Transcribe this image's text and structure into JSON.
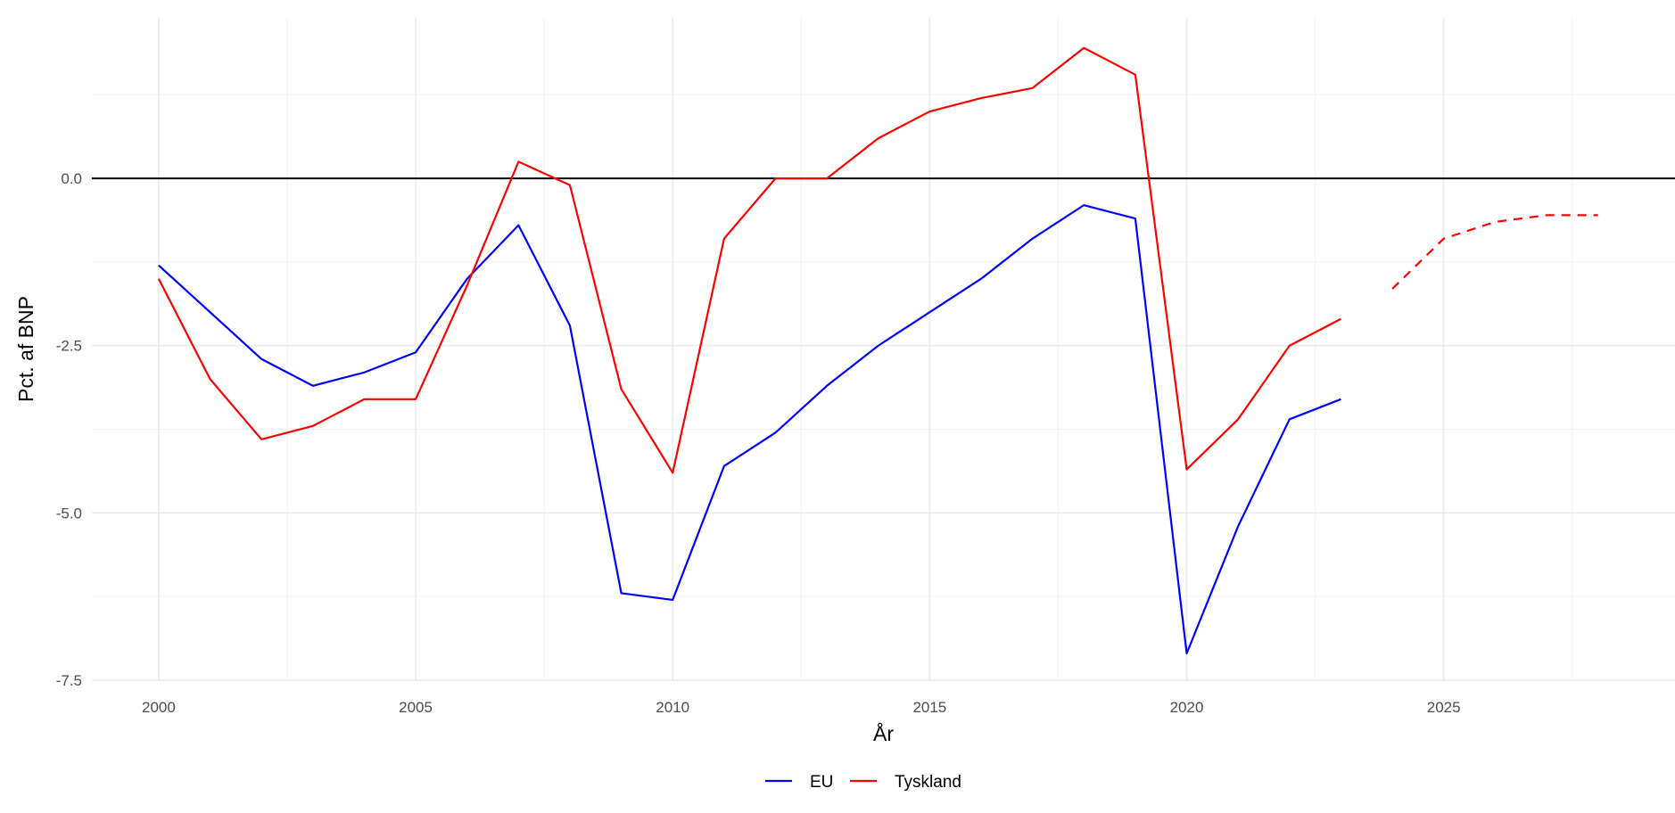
{
  "chart_data": {
    "type": "line",
    "title": "",
    "xlabel": "År",
    "ylabel": "Pct. af BNP",
    "xlim": [
      1998.7,
      2029.5
    ],
    "ylim": [
      -7.5,
      2.4
    ],
    "x_ticks": [
      2000,
      2005,
      2010,
      2015,
      2020,
      2025
    ],
    "x_tick_labels": [
      "2000",
      "2005",
      "2010",
      "2015",
      "2020",
      "2025"
    ],
    "y_ticks": [
      -7.5,
      -5.0,
      -2.5,
      0.0
    ],
    "y_tick_labels": [
      "-7.5",
      "-5.0",
      "-2.5",
      "0.0"
    ],
    "grid": true,
    "reference_line": {
      "y": 0,
      "color": "#000000"
    },
    "legend_position": "bottom",
    "series": [
      {
        "name": "EU",
        "color": "#0000ff",
        "line_style": "solid",
        "x": [
          2000,
          2001,
          2002,
          2003,
          2004,
          2005,
          2006,
          2007,
          2008,
          2009,
          2010,
          2011,
          2012,
          2013,
          2014,
          2015,
          2016,
          2017,
          2018,
          2019,
          2020,
          2021,
          2022,
          2023
        ],
        "values": [
          -1.3,
          -2.0,
          -2.7,
          -3.1,
          -2.9,
          -2.6,
          -1.5,
          -0.7,
          -2.2,
          -6.2,
          -6.3,
          -4.3,
          -3.8,
          -3.1,
          -2.5,
          -2.0,
          -1.5,
          -0.9,
          -0.4,
          -0.6,
          -7.1,
          -5.2,
          -3.6,
          -3.3
        ]
      },
      {
        "name": "Tyskland",
        "color": "#ff0000",
        "line_style": "solid",
        "x": [
          2000,
          2001,
          2002,
          2003,
          2004,
          2005,
          2006,
          2007,
          2008,
          2009,
          2010,
          2011,
          2012,
          2013,
          2014,
          2015,
          2016,
          2017,
          2018,
          2019,
          2020,
          2021,
          2022,
          2023
        ],
        "values": [
          -1.5,
          -3.0,
          -3.9,
          -3.7,
          -3.3,
          -3.3,
          -1.6,
          0.25,
          -0.1,
          -3.15,
          -4.4,
          -0.9,
          0.0,
          0.0,
          0.6,
          1.0,
          1.2,
          1.35,
          1.95,
          1.55,
          -4.35,
          -3.6,
          -2.5,
          -2.1
        ]
      },
      {
        "name": "",
        "color": "#ff0000",
        "line_style": "dashed",
        "in_legend": false,
        "x": [
          2024,
          2025,
          2026,
          2027,
          2028
        ],
        "values": [
          -1.65,
          -0.9,
          -0.65,
          -0.55,
          -0.55
        ]
      }
    ]
  }
}
